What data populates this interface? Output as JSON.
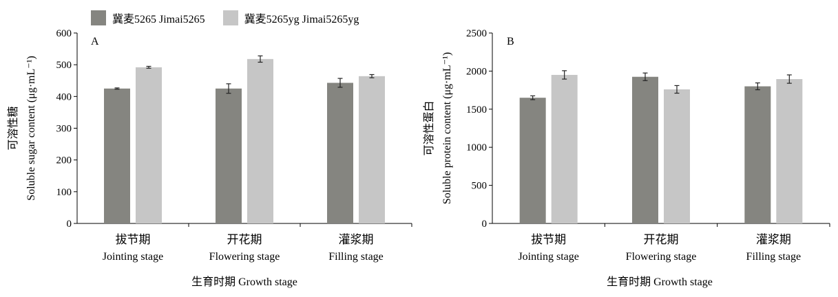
{
  "legend": {
    "items": [
      {
        "label": "冀麦5265 Jimai5265",
        "color": "#858580"
      },
      {
        "label": "冀麦5265yg  Jimai5265yg",
        "color": "#c6c6c6"
      }
    ]
  },
  "chart_data": [
    {
      "type": "bar",
      "panel_label": "A",
      "categories": [
        {
          "zh": "拔节期",
          "en": "Jointing stage"
        },
        {
          "zh": "开花期",
          "en": "Flowering stage"
        },
        {
          "zh": "灌浆期",
          "en": "Filling stage"
        }
      ],
      "series": [
        {
          "name": "冀麦5265 Jimai5265",
          "color": "#858580",
          "values": [
            425,
            425,
            443
          ],
          "errors": [
            2,
            15,
            14
          ]
        },
        {
          "name": "冀麦5265yg  Jimai5265yg",
          "color": "#c6c6c6",
          "values": [
            492,
            518,
            464
          ],
          "errors": [
            3,
            10,
            5
          ]
        }
      ],
      "ylabel_zh": "可溶性糖",
      "ylabel_en": "Soluble sugar content (μg·mL⁻¹)",
      "xlabel": "生育时期  Growth stage",
      "ylim": [
        0,
        600
      ],
      "yticks": [
        0,
        100,
        200,
        300,
        400,
        500,
        600
      ]
    },
    {
      "type": "bar",
      "panel_label": "B",
      "categories": [
        {
          "zh": "拔节期",
          "en": "Jointing stage"
        },
        {
          "zh": "开花期",
          "en": "Flowering stage"
        },
        {
          "zh": "灌浆期",
          "en": "Filling stage"
        }
      ],
      "series": [
        {
          "name": "冀麦5265 Jimai5265",
          "color": "#858580",
          "values": [
            1650,
            1925,
            1800
          ],
          "errors": [
            25,
            50,
            45
          ]
        },
        {
          "name": "冀麦5265yg  Jimai5265yg",
          "color": "#c6c6c6",
          "values": [
            1950,
            1760,
            1895
          ],
          "errors": [
            55,
            50,
            55
          ]
        }
      ],
      "ylabel_zh": "可溶性蛋白",
      "ylabel_en": "Soluble protein content (μg·mL⁻¹)",
      "xlabel": "生育时期  Growth stage",
      "ylim": [
        0,
        2500
      ],
      "yticks": [
        0,
        500,
        1000,
        1500,
        2000,
        2500
      ]
    }
  ]
}
